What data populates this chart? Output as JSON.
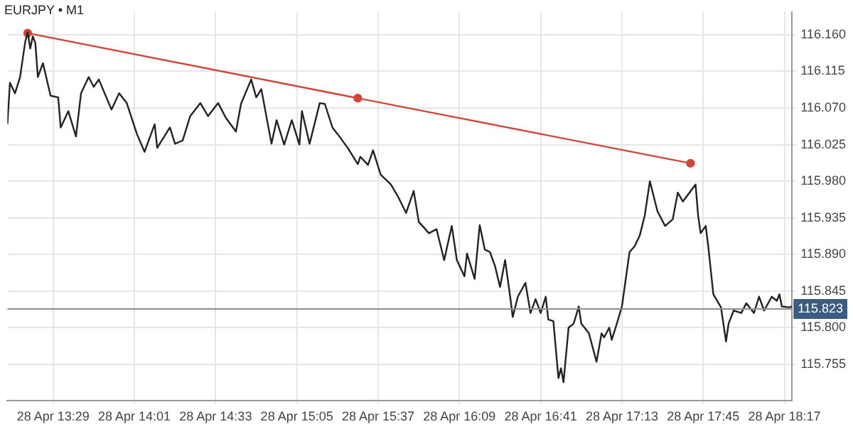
{
  "chart_data": {
    "type": "line",
    "title": "EURJPY • M1",
    "xlim": [
      "--04-28T13:11",
      "--04-28T18:20"
    ],
    "ylim": [
      115.71,
      116.188
    ],
    "xticks": [
      {
        "value": "--04-28T13:29",
        "label": "28 Apr 13:29"
      },
      {
        "value": "--04-28T14:01",
        "label": "28 Apr 14:01"
      },
      {
        "value": "--04-28T14:33",
        "label": "28 Apr 14:33"
      },
      {
        "value": "--04-28T15:05",
        "label": "28 Apr 15:05"
      },
      {
        "value": "--04-28T15:37",
        "label": "28 Apr 15:37"
      },
      {
        "value": "--04-28T16:09",
        "label": "28 Apr 16:09"
      },
      {
        "value": "--04-28T16:41",
        "label": "28 Apr 16:41"
      },
      {
        "value": "--04-28T17:13",
        "label": "28 Apr 17:13"
      },
      {
        "value": "--04-28T17:45",
        "label": "28 Apr 17:45"
      },
      {
        "value": "--04-28T18:17",
        "label": "28 Apr 18:17"
      }
    ],
    "yticks": [
      {
        "value": 115.755,
        "label": "115.755"
      },
      {
        "value": 115.8,
        "label": "115.800"
      },
      {
        "value": 115.845,
        "label": "115.845"
      },
      {
        "value": 115.89,
        "label": "115.890"
      },
      {
        "value": 115.935,
        "label": "115.935"
      },
      {
        "value": 115.98,
        "label": "115.980"
      },
      {
        "value": 116.025,
        "label": "116.025"
      },
      {
        "value": 116.07,
        "label": "116.070"
      },
      {
        "value": 116.115,
        "label": "116.115"
      },
      {
        "value": 116.16,
        "label": "116.160"
      }
    ],
    "grid": true,
    "legend": false,
    "ref_lines": [
      {
        "axis": "y",
        "value": 115.823,
        "label": "115.823",
        "color": "#8a8f96"
      }
    ],
    "series": [
      {
        "color": "#222222",
        "marker": "none",
        "x": [
          "--04-28T13:11",
          "--04-28T13:12",
          "--04-28T13:14",
          "--04-28T13:16",
          "--04-28T13:18",
          "--04-28T13:19",
          "--04-28T13:20",
          "--04-28T13:21",
          "--04-28T13:22",
          "--04-28T13:23",
          "--04-28T13:25",
          "--04-28T13:28",
          "--04-28T13:31",
          "--04-28T13:32",
          "--04-28T13:35",
          "--04-28T13:38",
          "--04-28T13:40",
          "--04-28T13:43",
          "--04-28T13:45",
          "--04-28T13:47",
          "--04-28T13:52",
          "--04-28T13:55",
          "--04-28T13:58",
          "--04-28T14:02",
          "--04-28T14:05",
          "--04-28T14:09",
          "--04-28T14:10",
          "--04-28T14:15",
          "--04-28T14:17",
          "--04-28T14:20",
          "--04-28T14:23",
          "--04-28T14:27",
          "--04-28T14:30",
          "--04-28T14:34",
          "--04-28T14:37",
          "--04-28T14:41",
          "--04-28T14:43",
          "--04-28T14:47",
          "--04-28T14:49",
          "--04-28T14:51",
          "--04-28T14:55",
          "--04-28T14:57",
          "--04-28T15:00",
          "--04-28T15:03",
          "--04-28T15:06",
          "--04-28T15:07",
          "--04-28T15:10",
          "--04-28T15:14",
          "--04-28T15:16",
          "--04-28T15:19",
          "--04-28T15:21",
          "--04-28T15:25",
          "--04-28T15:29",
          "--04-28T15:30",
          "--04-28T15:33",
          "--04-28T15:35",
          "--04-28T15:38",
          "--04-28T15:42",
          "--04-28T15:45",
          "--04-28T15:48",
          "--04-28T15:51",
          "--04-28T15:53",
          "--04-28T15:57",
          "--04-28T16:00",
          "--04-28T16:03",
          "--04-28T16:06",
          "--04-28T16:08",
          "--04-28T16:11",
          "--04-28T16:12",
          "--04-28T16:15",
          "--04-28T16:17",
          "--04-28T16:19",
          "--04-28T16:21",
          "--04-28T16:23",
          "--04-28T16:25",
          "--04-28T16:27",
          "--04-28T16:29",
          "--04-28T16:30",
          "--04-28T16:32",
          "--04-28T16:35",
          "--04-28T16:37",
          "--04-28T16:39",
          "--04-28T16:41",
          "--04-28T16:43",
          "--04-28T16:44",
          "--04-28T16:46",
          "--04-28T16:48",
          "--04-28T16:49",
          "--04-28T16:50",
          "--04-28T16:52",
          "--04-28T16:54",
          "--04-28T16:56",
          "--04-28T16:57",
          "--04-28T17:00",
          "--04-28T17:03",
          "--04-28T17:05",
          "--04-28T17:06",
          "--04-28T17:08",
          "--04-28T17:09",
          "--04-28T17:11",
          "--04-28T17:13",
          "--04-28T17:16",
          "--04-28T17:18",
          "--04-28T17:20",
          "--04-28T17:22",
          "--04-28T17:24",
          "--04-28T17:27",
          "--04-28T17:30",
          "--04-28T17:33",
          "--04-28T17:35",
          "--04-28T17:37",
          "--04-28T17:42",
          "--04-28T17:43",
          "--04-28T17:44",
          "--04-28T17:46",
          "--04-28T17:47",
          "--04-28T17:49",
          "--04-28T17:52",
          "--04-28T17:54",
          "--04-28T17:55",
          "--04-28T17:57",
          "--04-28T18:00",
          "--04-28T18:02",
          "--04-28T18:05",
          "--04-28T18:07",
          "--04-28T18:09",
          "--04-28T18:12",
          "--04-28T18:14",
          "--04-28T18:15",
          "--04-28T18:16",
          "--04-28T18:19",
          "--04-28T18:20"
        ],
        "values": [
          116.05,
          116.101,
          116.088,
          116.108,
          116.151,
          116.163,
          116.143,
          116.158,
          116.15,
          116.108,
          116.125,
          116.085,
          116.083,
          116.046,
          116.066,
          116.035,
          116.088,
          116.108,
          116.096,
          116.105,
          116.068,
          116.088,
          116.076,
          116.038,
          116.016,
          116.05,
          116.021,
          116.046,
          116.026,
          116.03,
          116.06,
          116.076,
          116.06,
          116.076,
          116.058,
          116.041,
          116.075,
          116.105,
          116.083,
          116.093,
          116.026,
          116.055,
          116.025,
          116.055,
          116.025,
          116.066,
          116.026,
          116.076,
          116.075,
          116.046,
          116.038,
          116.021,
          116.001,
          116.01,
          116.0,
          116.018,
          115.988,
          115.976,
          115.96,
          115.941,
          115.968,
          115.93,
          115.916,
          115.921,
          115.883,
          115.925,
          115.883,
          115.863,
          115.891,
          115.86,
          115.926,
          115.896,
          115.893,
          115.876,
          115.85,
          115.883,
          115.838,
          115.813,
          115.838,
          115.855,
          115.818,
          115.835,
          115.818,
          115.838,
          115.81,
          115.808,
          115.738,
          115.75,
          115.733,
          115.8,
          115.805,
          115.826,
          115.805,
          115.793,
          115.758,
          115.793,
          115.788,
          115.8,
          115.785,
          115.805,
          115.826,
          115.893,
          115.9,
          115.913,
          115.938,
          115.98,
          115.943,
          115.925,
          115.933,
          115.966,
          115.955,
          115.976,
          115.938,
          115.916,
          115.925,
          115.9,
          115.841,
          115.825,
          115.783,
          115.805,
          115.821,
          115.818,
          115.83,
          115.818,
          115.838,
          115.821,
          115.838,
          115.833,
          115.841,
          115.826,
          115.825,
          115.826
        ]
      },
      {
        "type": "line",
        "color": "#d0453a",
        "marker": "circle",
        "x": [
          "--04-28T13:19",
          "--04-28T15:29",
          "--04-28T17:40"
        ],
        "values": [
          116.162,
          116.082,
          116.002
        ]
      }
    ]
  }
}
